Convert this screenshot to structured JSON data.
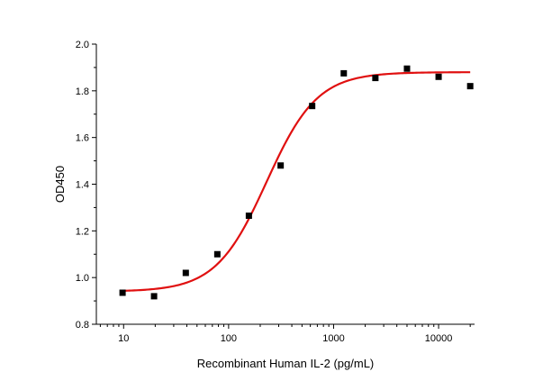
{
  "chart_data": {
    "type": "scatter",
    "title": "",
    "xlabel": "Recombinant Human IL-2 (pg/mL)",
    "ylabel": "OD450",
    "x_scale": "log",
    "xlim": [
      5.5,
      22000
    ],
    "ylim": [
      0.8,
      2.0
    ],
    "x_ticks": [
      10,
      100,
      1000,
      10000
    ],
    "x_tick_labels": [
      "10",
      "100",
      "1000",
      "10000"
    ],
    "y_ticks": [
      0.8,
      1.0,
      1.2,
      1.4,
      1.6,
      1.8,
      2.0
    ],
    "y_tick_labels": [
      "0.8",
      "1.0",
      "1.2",
      "1.4",
      "1.6",
      "1.8",
      "2.0"
    ],
    "grid": false,
    "legend": "none",
    "series": [
      {
        "type": "scatter",
        "marker": "square",
        "color": "#000000",
        "x": [
          9.77,
          19.5,
          39.1,
          78.1,
          156,
          313,
          625,
          1250,
          2500,
          5000,
          10000,
          20000
        ],
        "y": [
          0.935,
          0.92,
          1.02,
          1.1,
          1.265,
          1.48,
          1.735,
          1.875,
          1.855,
          1.895,
          1.86,
          1.82
        ]
      },
      {
        "type": "line",
        "fit": "4PL",
        "color": "#e01010",
        "bottom": 0.94,
        "top": 1.88,
        "ec50": 230,
        "hill": 1.8,
        "x_range": [
          9.77,
          20000
        ]
      }
    ]
  }
}
